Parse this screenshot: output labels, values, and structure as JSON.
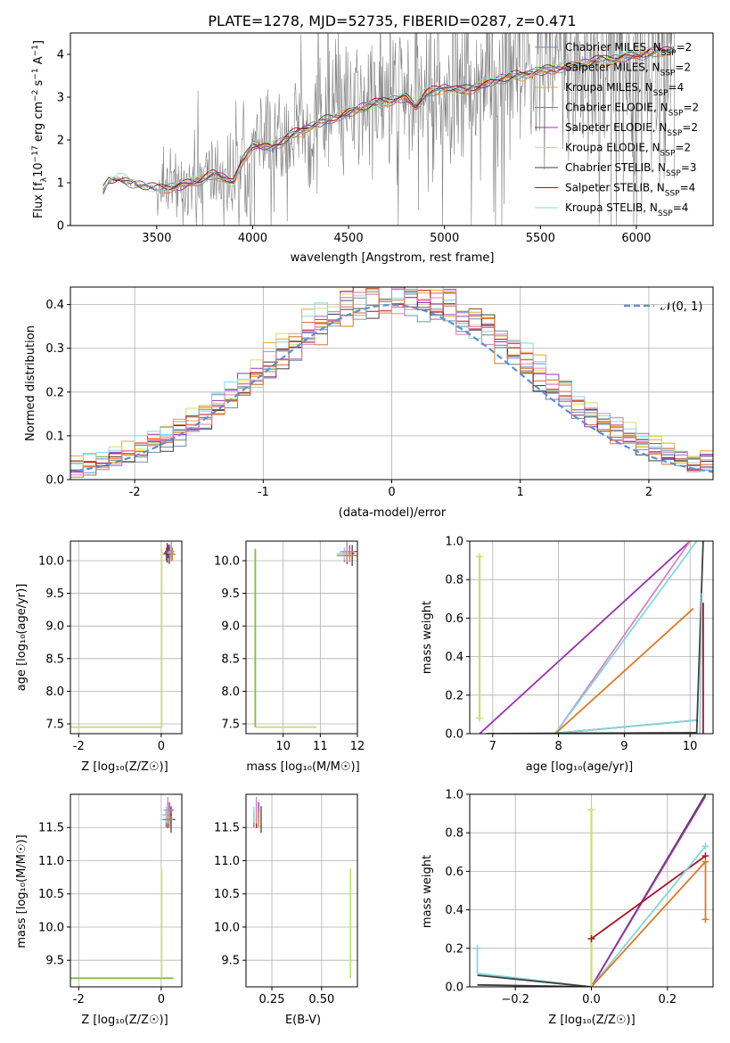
{
  "title": "PLATE=1278, MJD=52735, FIBERID=0287, z=0.471",
  "colors": {
    "Chabrier MILES": "#6c8ebf",
    "Salpeter MILES": "#e06040",
    "Kroupa MILES": "#f0a030",
    "Chabrier ELODIE": "#7f7f7f",
    "Salpeter ELODIE": "#9b30b0",
    "Kroupa ELODIE": "#c8e070",
    "Chabrier STELIB": "#404040",
    "Salpeter STELIB": "#b01020",
    "Kroupa STELIB": "#80d8e0",
    "gauss": "#5b8ed8",
    "orange": "#e07820",
    "pink": "#e080c0",
    "green": "#80c040"
  },
  "chart_data": [
    {
      "id": "spectrum",
      "type": "line",
      "title": "PLATE=1278, MJD=52735, FIBERID=0287, z=0.471",
      "xlabel": "wavelength [Angstrom, rest frame]",
      "ylabel": "Flux [f_λ 10⁻¹⁷ erg cm⁻² s⁻¹ A⁻¹]",
      "xlim": [
        3050,
        6400
      ],
      "ylim": [
        0,
        4.5
      ],
      "xticks": [
        3500,
        4000,
        4500,
        5000,
        5500,
        6000
      ],
      "yticks": [
        0,
        1,
        2,
        3,
        4
      ],
      "legend_position": "upper-right",
      "legend": [
        {
          "base": "Chabrier MILES, N",
          "sub": "SSP",
          "tail": "=2"
        },
        {
          "base": "Salpeter MILES, N",
          "sub": "SSP",
          "tail": "=2"
        },
        {
          "base": "Kroupa MILES, N",
          "sub": "SSP",
          "tail": "=4"
        },
        {
          "base": "Chabrier ELODIE, N",
          "sub": "SSP",
          "tail": "=2"
        },
        {
          "base": "Salpeter ELODIE, N",
          "sub": "SSP",
          "tail": "=2"
        },
        {
          "base": "Kroupa ELODIE, N",
          "sub": "SSP",
          "tail": "=2"
        },
        {
          "base": "Chabrier STELIB, N",
          "sub": "SSP",
          "tail": "=3"
        },
        {
          "base": "Salpeter STELIB, N",
          "sub": "SSP",
          "tail": "=4"
        },
        {
          "base": "Kroupa STELIB, N",
          "sub": "SSP",
          "tail": "=4"
        }
      ],
      "continuum": {
        "x": [
          3220,
          3250,
          3300,
          3400,
          3500,
          3600,
          3700,
          3800,
          3850,
          3900,
          3950,
          4000,
          4100,
          4200,
          4300,
          4400,
          4500,
          4600,
          4700,
          4800,
          4850,
          4900,
          5000,
          5100,
          5200,
          5300,
          5400,
          5500,
          5600,
          5700,
          5800,
          5900,
          6000,
          6100,
          6200
        ],
        "y": [
          0.8,
          1.05,
          1.1,
          0.95,
          0.85,
          0.9,
          1.05,
          1.2,
          1.1,
          1.0,
          1.5,
          1.9,
          1.85,
          2.1,
          2.3,
          2.5,
          2.65,
          2.8,
          2.9,
          3.0,
          2.8,
          3.1,
          3.2,
          3.15,
          3.3,
          3.45,
          3.5,
          3.6,
          3.7,
          3.75,
          3.85,
          3.9,
          4.0,
          4.05,
          4.1
        ]
      }
    },
    {
      "id": "residuals",
      "type": "histogram",
      "xlabel": "(data-model)/error",
      "ylabel": "Normed distribution",
      "xlim": [
        -2.5,
        2.5
      ],
      "ylim": [
        0,
        0.44
      ],
      "xticks": [
        -2,
        -1,
        0,
        1,
        2
      ],
      "yticks": [
        0,
        0.1,
        0.2,
        0.3,
        0.4
      ],
      "legend": "𝒩(0, 1)",
      "legend_position": "upper-right",
      "grid": true
    },
    {
      "id": "age_vs_Z",
      "type": "scatter",
      "xlabel": "Z [log₁₀(Z/Z☉)]",
      "ylabel": "age  [log₁₀(age/yr)]",
      "xlim": [
        -2.2,
        0.5
      ],
      "ylim": [
        7.35,
        10.3
      ],
      "xticks": [
        -2,
        0
      ],
      "yticks": [
        7.5,
        8.0,
        8.5,
        9.0,
        9.5,
        10.0
      ],
      "grid": true
    },
    {
      "id": "age_vs_mass",
      "type": "scatter",
      "xlabel": "mass [log₁₀(M/M☉)]",
      "xlim": [
        9.0,
        12.0
      ],
      "ylim": [
        7.35,
        10.3
      ],
      "xticks": [
        10,
        11,
        12
      ],
      "yticks": [
        7.5,
        8.0,
        8.5,
        9.0,
        9.5,
        10.0
      ],
      "grid": true
    },
    {
      "id": "weight_vs_age",
      "type": "line",
      "xlabel": "age  [log₁₀(age/yr)]",
      "ylabel": "mass weight",
      "xlim": [
        6.65,
        10.35
      ],
      "ylim": [
        0,
        1.0
      ],
      "xticks": [
        7,
        8,
        9,
        10
      ],
      "yticks": [
        0.0,
        0.2,
        0.4,
        0.6,
        0.8,
        1.0
      ],
      "grid": true
    },
    {
      "id": "mass_vs_Z",
      "type": "scatter",
      "xlabel": "Z [log₁₀(Z/Z☉)]",
      "ylabel": "mass [log₁₀(M/M☉)]",
      "xlim": [
        -2.2,
        0.5
      ],
      "ylim": [
        9.1,
        12.0
      ],
      "xticks": [
        -2,
        0
      ],
      "yticks": [
        9.5,
        10.0,
        10.5,
        11.0,
        11.5
      ],
      "grid": true
    },
    {
      "id": "mass_vs_ebv",
      "type": "scatter",
      "xlabel": "E(B-V)",
      "xlim": [
        0.12,
        0.68
      ],
      "ylim": [
        9.1,
        12.0
      ],
      "xticks": [
        0.25,
        0.5
      ],
      "yticks": [
        9.5,
        10.0,
        10.5,
        11.0,
        11.5
      ],
      "grid": true
    },
    {
      "id": "weight_vs_Z",
      "type": "line",
      "xlabel": "Z [log₁₀(Z/Z☉)]",
      "ylabel": "mass weight",
      "xlim": [
        -0.32,
        0.32
      ],
      "ylim": [
        0,
        1.0
      ],
      "xticks": [
        -0.2,
        0.0,
        0.2
      ],
      "yticks": [
        0.0,
        0.2,
        0.4,
        0.6,
        0.8,
        1.0
      ],
      "grid": true
    }
  ]
}
